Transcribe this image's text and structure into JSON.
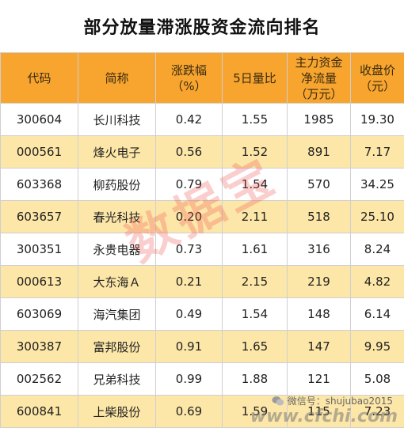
{
  "title": "部分放量滞涨股资金流向排名",
  "headers": {
    "code": "代码",
    "name": "简称",
    "change_l1": "涨跌幅",
    "change_l2": "（%）",
    "vol_ratio": "5日量比",
    "flow_l1": "主力资金",
    "flow_l2": "净流量",
    "flow_l3": "（万元）",
    "close_l1": "收盘价",
    "close_l2": "（元）"
  },
  "rows": [
    {
      "code": "300604",
      "name": "长川科技",
      "change": "0.42",
      "ratio": "1.55",
      "flow": "1985",
      "close": "19.30"
    },
    {
      "code": "000561",
      "name": "烽火电子",
      "change": "0.56",
      "ratio": "1.52",
      "flow": "891",
      "close": "7.17"
    },
    {
      "code": "603368",
      "name": "柳药股份",
      "change": "0.79",
      "ratio": "1.54",
      "flow": "570",
      "close": "34.25"
    },
    {
      "code": "603657",
      "name": "春光科技",
      "change": "0.20",
      "ratio": "2.11",
      "flow": "518",
      "close": "25.10"
    },
    {
      "code": "300351",
      "name": "永贵电器",
      "change": "0.73",
      "ratio": "1.61",
      "flow": "316",
      "close": "8.24"
    },
    {
      "code": "000613",
      "name": "大东海Ａ",
      "change": "0.21",
      "ratio": "2.15",
      "flow": "219",
      "close": "4.82"
    },
    {
      "code": "603069",
      "name": "海汽集团",
      "change": "0.49",
      "ratio": "1.54",
      "flow": "148",
      "close": "6.14"
    },
    {
      "code": "300387",
      "name": "富邦股份",
      "change": "0.91",
      "ratio": "1.65",
      "flow": "147",
      "close": "9.95"
    },
    {
      "code": "002562",
      "name": "兄弟科技",
      "change": "0.99",
      "ratio": "1.88",
      "flow": "121",
      "close": "5.08"
    },
    {
      "code": "600841",
      "name": "上柴股份",
      "change": "0.69",
      "ratio": "1.59",
      "flow": "115",
      "close": "7.23"
    }
  ],
  "watermarks": {
    "main": "数据宝",
    "wechat": "微信号：shujubao2015",
    "site": "www.cfchi.com"
  },
  "colors": {
    "header_bg": "#f7a52f",
    "alt_row_bg": "#fde7a8",
    "watermark": "#f05050"
  }
}
